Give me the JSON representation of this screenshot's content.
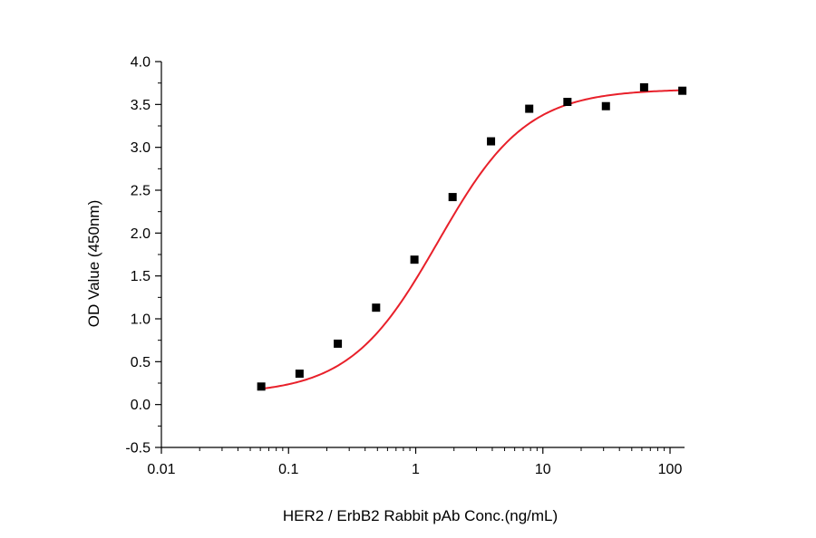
{
  "chart_data": {
    "type": "scatter",
    "title": "",
    "xlabel": "HER2 / ErbB2 Rabbit pAb Conc.(ng/mL)",
    "ylabel": "OD Value (450nm)",
    "x_scale": "log",
    "xlim": [
      0.01,
      130
    ],
    "ylim": [
      -0.5,
      4.0
    ],
    "x_ticks": [
      0.01,
      0.1,
      1,
      10,
      100
    ],
    "x_tick_labels": [
      "0.01",
      "0.1",
      "1",
      "10",
      "100"
    ],
    "y_ticks": [
      -0.5,
      0.0,
      0.5,
      1.0,
      1.5,
      2.0,
      2.5,
      3.0,
      3.5,
      4.0
    ],
    "y_tick_labels": [
      "-0.5",
      "0.0",
      "0.5",
      "1.0",
      "1.5",
      "2.0",
      "2.5",
      "3.0",
      "3.5",
      "4.0"
    ],
    "grid": false,
    "legend": "none",
    "series": [
      {
        "marker": "square",
        "color": "#000000",
        "x": [
          0.061,
          0.122,
          0.244,
          0.488,
          0.977,
          1.95,
          3.91,
          7.81,
          15.6,
          31.3,
          62.5,
          125
        ],
        "y": [
          0.21,
          0.36,
          0.71,
          1.13,
          1.69,
          2.42,
          3.07,
          3.45,
          3.53,
          3.48,
          3.7,
          3.66
        ]
      },
      {
        "type": "line",
        "color": "#e8202a",
        "fit": "4PL",
        "bottom": 0.12,
        "top": 3.68,
        "ec50": 1.5,
        "hill": 1.25,
        "x_range": [
          0.061,
          125
        ]
      }
    ]
  }
}
